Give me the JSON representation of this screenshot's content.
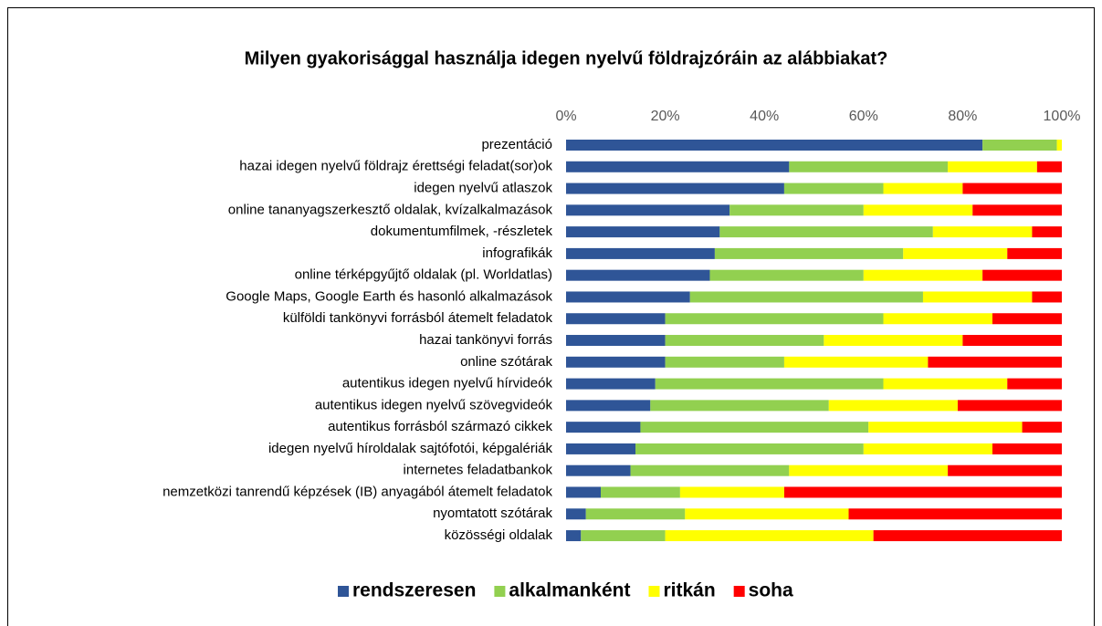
{
  "chart_data": {
    "type": "stacked-bar-horizontal",
    "title": "Milyen gyakorisággal használja idegen nyelvű földrajzóráin az alábbiakat?",
    "categories": [
      "prezentáció",
      "hazai idegen nyelvű földrajz érettségi feladat(sor)ok",
      "idegen nyelvű atlaszok",
      "online tananyagszerkesztő oldalak, kvízalkalmazások",
      "dokumentumfilmek, -részletek",
      "infografikák",
      "online térképgyűjtő oldalak (pl. Worldatlas)",
      "Google Maps, Google Earth és hasonló alkalmazások",
      "külföldi tankönyvi forrásból átemelt feladatok",
      "hazai tankönyvi forrás",
      "online szótárak",
      "autentikus idegen nyelvű hírvideók",
      "autentikus idegen nyelvű szövegvideók",
      "autentikus forrásból származó cikkek",
      "idegen nyelvű híroldalak sajtófotói, képgalériák",
      "internetes feladatbankok",
      "nemzetközi tanrendű képzések (IB) anyagából átemelt feladatok",
      "nyomtatott szótárak",
      "közösségi oldalak"
    ],
    "series": [
      {
        "name": "rendszeresen",
        "color": "#2f5597",
        "values": [
          84,
          45,
          44,
          33,
          31,
          30,
          29,
          25,
          20,
          20,
          20,
          18,
          17,
          15,
          14,
          13,
          7,
          4,
          3
        ]
      },
      {
        "name": "alkalmanként",
        "color": "#92d050",
        "values": [
          15,
          32,
          20,
          27,
          43,
          38,
          31,
          47,
          44,
          32,
          24,
          46,
          36,
          46,
          46,
          32,
          16,
          20,
          17
        ]
      },
      {
        "name": "ritkán",
        "color": "#ffff00",
        "values": [
          1,
          18,
          16,
          22,
          20,
          21,
          24,
          22,
          22,
          28,
          29,
          25,
          26,
          31,
          26,
          32,
          21,
          33,
          42
        ]
      },
      {
        "name": "soha",
        "color": "#ff0000",
        "values": [
          0,
          5,
          20,
          18,
          6,
          11,
          16,
          6,
          14,
          20,
          27,
          11,
          21,
          8,
          14,
          23,
          56,
          43,
          38
        ]
      }
    ],
    "xlim": [
      0,
      100
    ],
    "xticks": [
      {
        "value": 0,
        "label": "0%"
      },
      {
        "value": 20,
        "label": "20%"
      },
      {
        "value": 40,
        "label": "40%"
      },
      {
        "value": 60,
        "label": "60%"
      },
      {
        "value": 80,
        "label": "80%"
      },
      {
        "value": 100,
        "label": "100%"
      }
    ],
    "legend": "bottom"
  }
}
